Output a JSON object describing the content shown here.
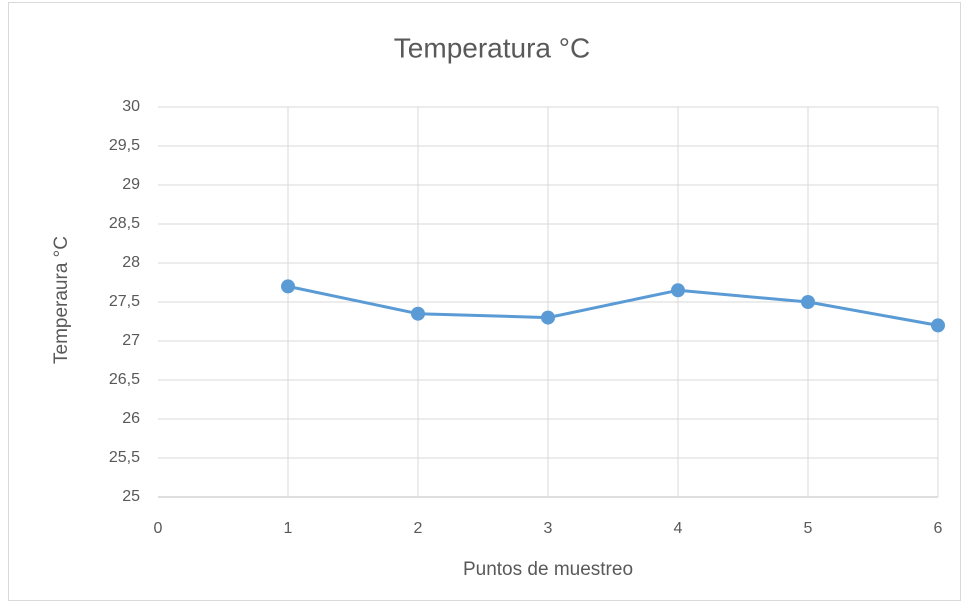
{
  "chart_data": {
    "type": "line",
    "title": "Temperatura °C",
    "x_label": "Puntos de muestreo",
    "y_label": "Temperaura °C",
    "x": [
      1,
      2,
      3,
      4,
      5,
      6
    ],
    "series": [
      {
        "color": "#5b9bd5",
        "values": [
          27.7,
          27.35,
          27.3,
          27.65,
          27.5,
          27.2
        ]
      }
    ],
    "xlim": [
      0,
      6
    ],
    "xticks": [
      0,
      1,
      2,
      3,
      4,
      5,
      6
    ],
    "ylim": [
      25,
      30
    ],
    "yticks": [
      25,
      {
        "value": 25.5,
        "label": "25,5"
      },
      26,
      {
        "value": 26.5,
        "label": "26,5"
      },
      27,
      {
        "value": 27.5,
        "label": "27,5"
      },
      28,
      {
        "value": 28.5,
        "label": "28,5"
      },
      29,
      {
        "value": 29.5,
        "label": "29,5"
      },
      30
    ],
    "grid": true,
    "markers": true
  }
}
